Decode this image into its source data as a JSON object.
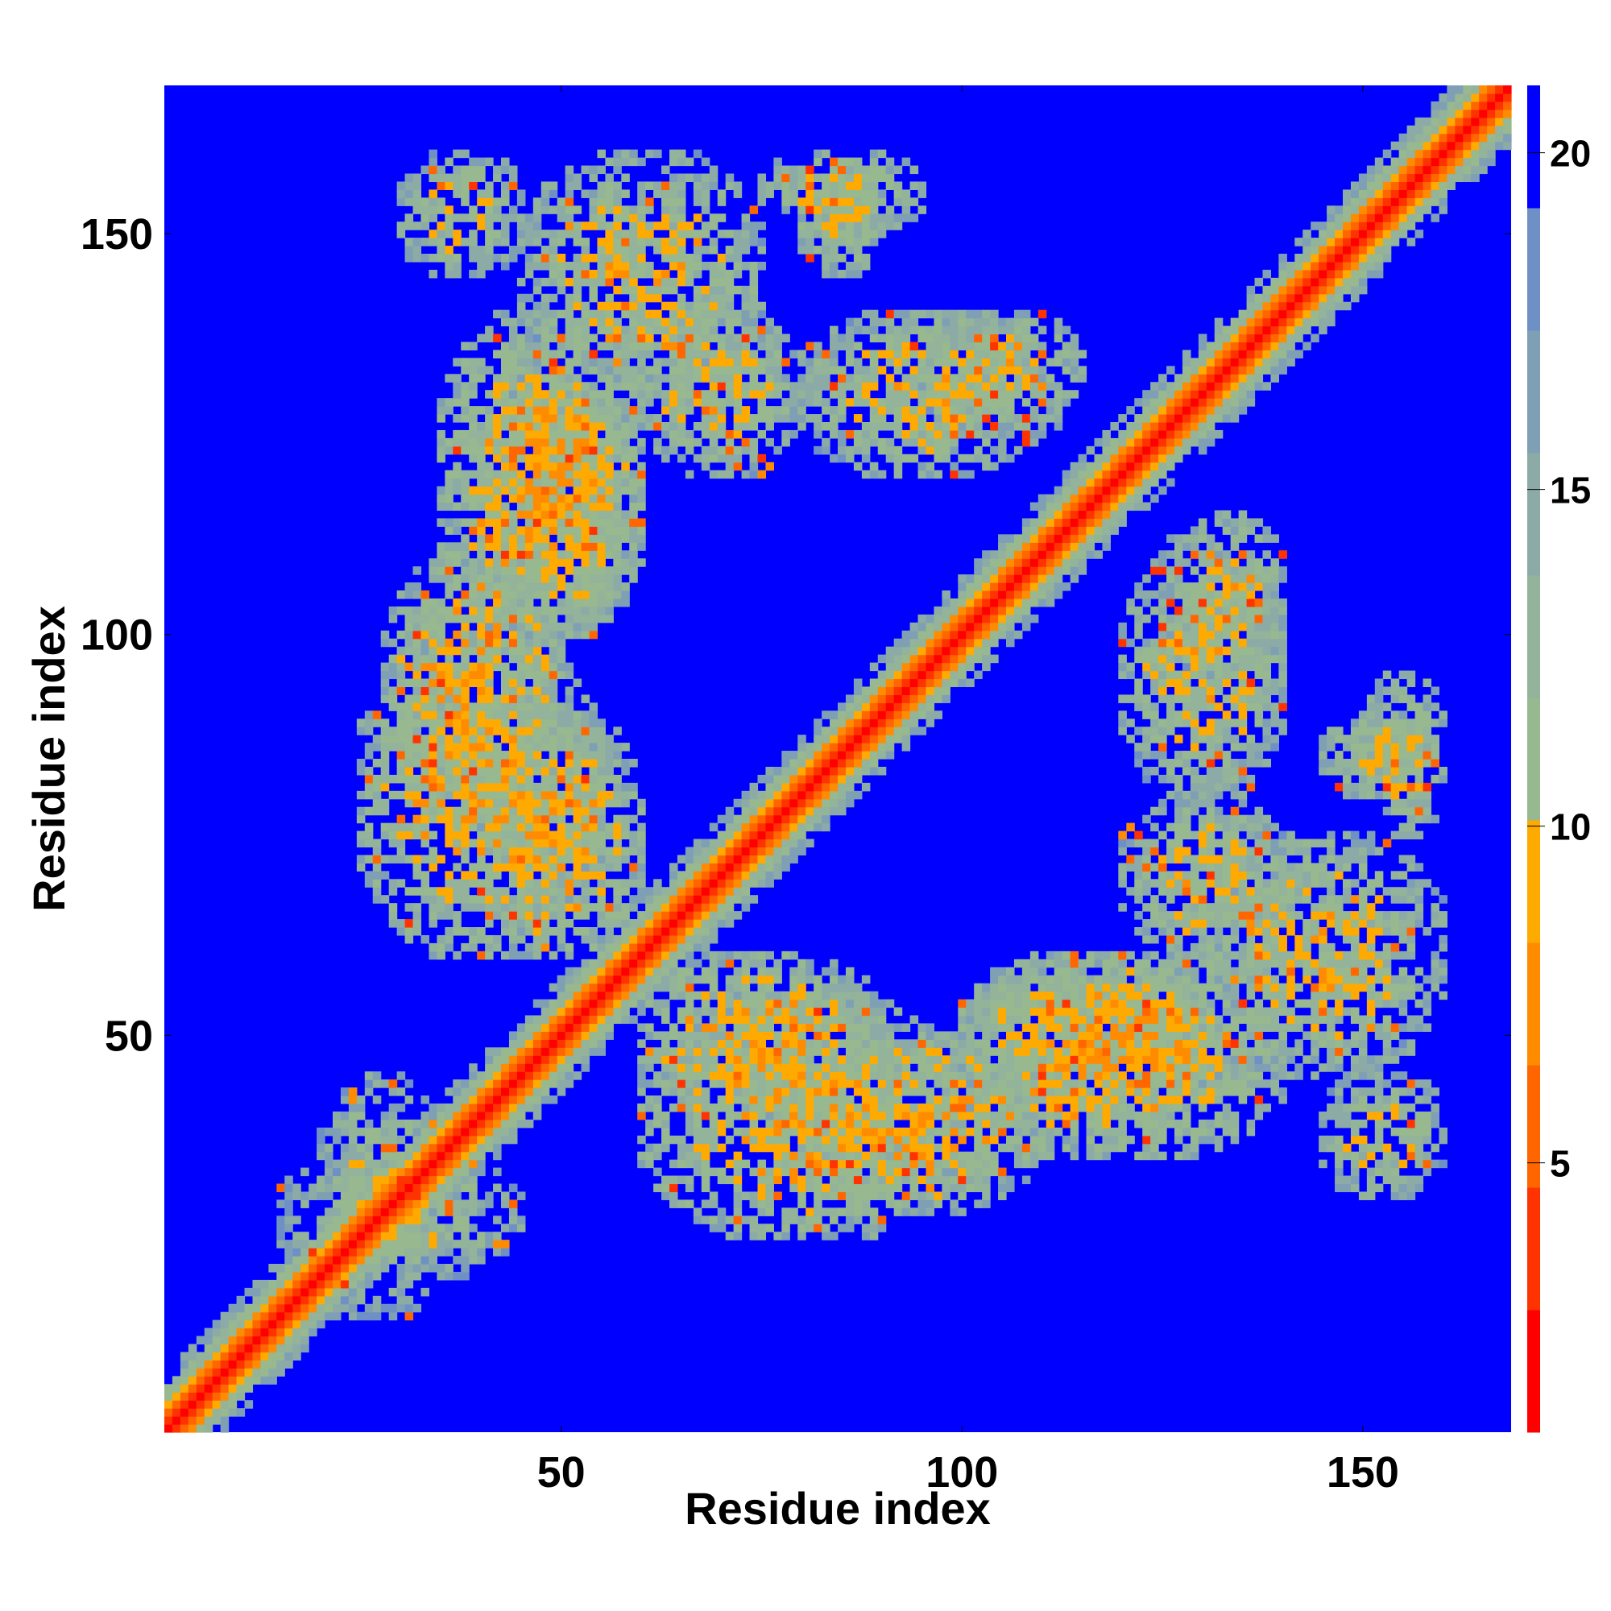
{
  "chart_data": {
    "type": "heatmap",
    "description_of_values": "pairwise residue distance map (contact map)",
    "xlabel": "Residue index",
    "ylabel": "Residue index",
    "xlim": [
      1,
      168
    ],
    "ylim": [
      1,
      168
    ],
    "x_ticks": [
      50,
      100,
      150
    ],
    "y_ticks": [
      50,
      100,
      150
    ],
    "colorbar": {
      "min": 1,
      "max": 21,
      "ticks": [
        5,
        10,
        15,
        20
      ],
      "colors": [
        "#ff0000",
        "#ff3300",
        "#ff6600",
        "#ff8c00",
        "#ffaa00",
        "#98b890",
        "#93b39a",
        "#8caba6",
        "#7f9fb5",
        "#6f90c4",
        "#0000ff"
      ]
    },
    "background_value": 21,
    "diagonal": {
      "description": "self contacts along x = y",
      "value": 1
    },
    "contact_regions": [
      {
        "x_range": [
          25,
          55
        ],
        "y_range": [
          60,
          100
        ],
        "level": "mid"
      },
      {
        "x_range": [
          35,
          60
        ],
        "y_range": [
          100,
          140
        ],
        "level": "mid"
      },
      {
        "x_range": [
          45,
          75
        ],
        "y_range": [
          130,
          160
        ],
        "level": "high"
      },
      {
        "x_range": [
          60,
          90
        ],
        "y_range": [
          40,
          60
        ],
        "level": "mid"
      },
      {
        "x_range": [
          80,
          110
        ],
        "y_range": [
          28,
          50
        ],
        "level": "mid"
      },
      {
        "x_range": [
          100,
          135
        ],
        "y_range": [
          40,
          60
        ],
        "level": "mid"
      },
      {
        "x_range": [
          120,
          140
        ],
        "y_range": [
          60,
          80
        ],
        "level": "high"
      },
      {
        "x_range": [
          125,
          140
        ],
        "y_range": [
          95,
          115
        ],
        "level": "high"
      },
      {
        "x_range": [
          80,
          110
        ],
        "y_range": [
          120,
          140
        ],
        "level": "high"
      },
      {
        "x_range": [
          75,
          95
        ],
        "y_range": [
          150,
          160
        ],
        "level": "high"
      },
      {
        "x_range": [
          145,
          160
        ],
        "y_range": [
          30,
          45
        ],
        "level": "high"
      },
      {
        "x_range": [
          145,
          160
        ],
        "y_range": [
          80,
          90
        ],
        "level": "high"
      },
      {
        "x_range": [
          15,
          45
        ],
        "y_range": [
          20,
          35
        ],
        "level": "low"
      }
    ]
  }
}
